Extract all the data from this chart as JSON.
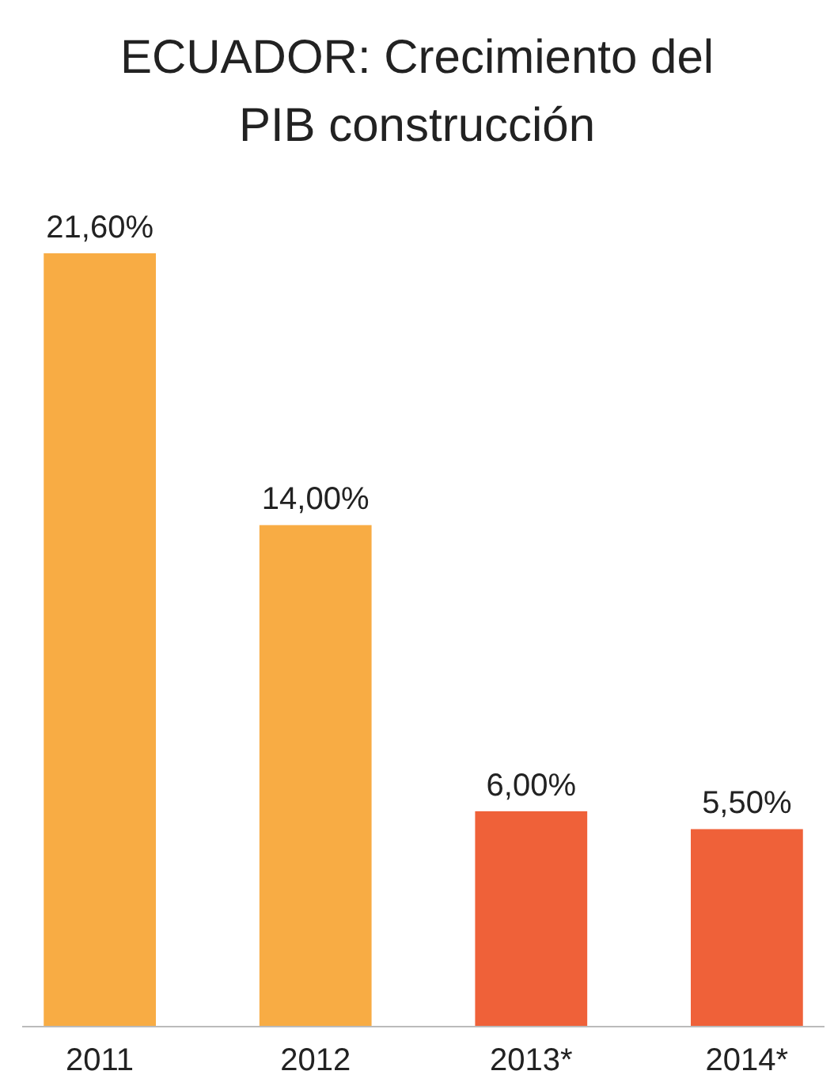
{
  "chart_data": {
    "type": "bar",
    "title": "ECUADOR: Crecimiento del PIB construcción",
    "categories": [
      "2011",
      "2012",
      "2013*",
      "2014*"
    ],
    "values": [
      21.6,
      14,
      6,
      5.5
    ],
    "colors": [
      "#f8ac44",
      "#f8ac44",
      "#ef6139",
      "#ef6139"
    ],
    "value_labels": [
      "21,60%",
      "14,00%",
      "6,00%",
      "5,50%"
    ]
  }
}
